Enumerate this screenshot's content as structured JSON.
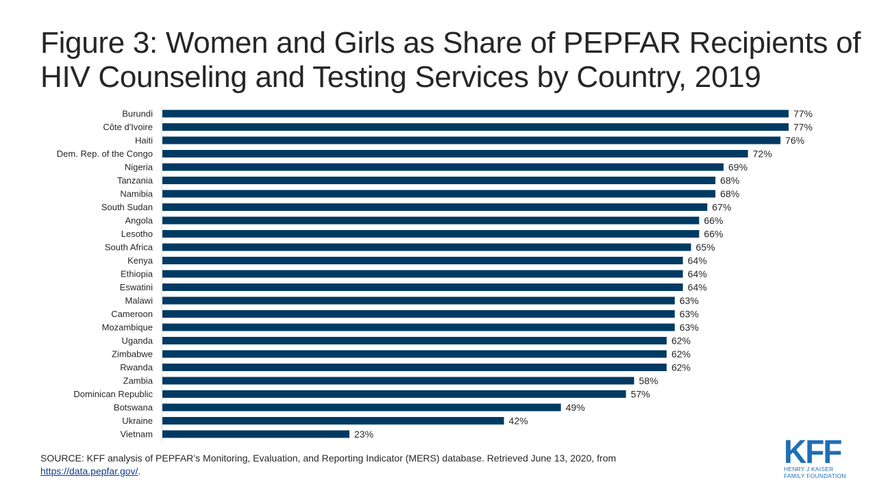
{
  "title_line1": "Figure 3: Women and Girls as Share of PEPFAR Recipients of",
  "title_line2": "HIV Counseling and Testing Services by Country, 2019",
  "source_text": "SOURCE: KFF analysis of PEPFAR’s Monitoring, Evaluation, and Reporting Indicator (MERS) database. Retrieved June 13, 2020, from",
  "source_link": "https://data.pepfar.gov/",
  "source_end": ".",
  "logo": {
    "mark": "KFF",
    "line1": "HENRY J KAISER",
    "line2": "FAMILY FOUNDATION"
  },
  "colors": {
    "bar": "#003a63",
    "logo": "#1f6fb5"
  },
  "chart_data": {
    "type": "bar",
    "orientation": "horizontal",
    "title": "Figure 3: Women and Girls as Share of PEPFAR Recipients of HIV Counseling and Testing Services by Country, 2019",
    "xlabel": "",
    "ylabel": "",
    "unit": "%",
    "xlim": [
      0,
      100
    ],
    "grid": false,
    "categories": [
      "Burundi",
      "Côte d'Ivoire",
      "Haiti",
      "Dem. Rep. of the Congo",
      "Nigeria",
      "Tanzania",
      "Namibia",
      "South Sudan",
      "Angola",
      "Lesotho",
      "South Africa",
      "Kenya",
      "Ethiopia",
      "Eswatini",
      "Malawi",
      "Cameroon",
      "Mozambique",
      "Uganda",
      "Zimbabwe",
      "Rwanda",
      "Zambia",
      "Dominican Republic",
      "Botswana",
      "Ukraine",
      "Vietnam"
    ],
    "values": [
      77,
      77,
      76,
      72,
      69,
      68,
      68,
      67,
      66,
      66,
      65,
      64,
      64,
      64,
      63,
      63,
      63,
      62,
      62,
      62,
      58,
      57,
      49,
      42,
      23
    ],
    "labels": [
      "77%",
      "77%",
      "76%",
      "72%",
      "69%",
      "68%",
      "68%",
      "67%",
      "66%",
      "66%",
      "65%",
      "64%",
      "64%",
      "64%",
      "63%",
      "63%",
      "63%",
      "62%",
      "62%",
      "62%",
      "58%",
      "57%",
      "49%",
      "42%",
      "23%"
    ]
  }
}
